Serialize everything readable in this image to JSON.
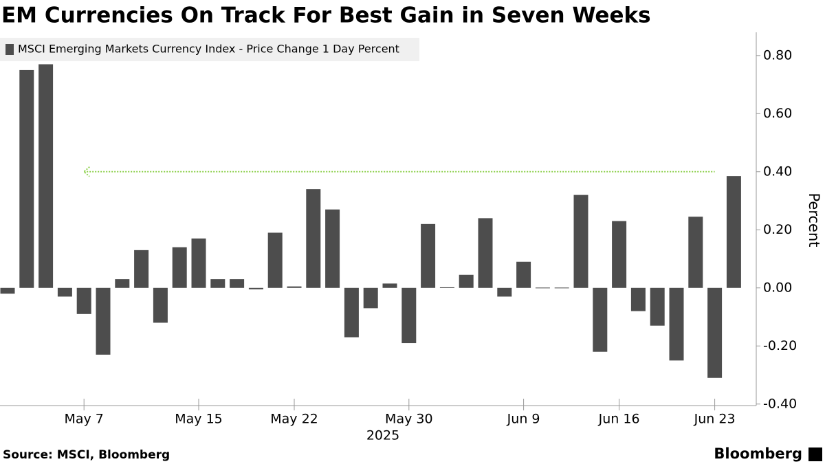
{
  "chart_data": {
    "type": "bar",
    "title": "EM Currencies On Track For Best Gain in Seven Weeks",
    "series": [
      {
        "name": "MSCI Emerging Markets Currency Index - Price Change 1 Day Percent",
        "color": "#4d4d4d",
        "values": [
          -0.02,
          0.75,
          0.77,
          -0.03,
          -0.09,
          -0.23,
          0.03,
          0.13,
          -0.12,
          0.14,
          0.17,
          0.03,
          0.03,
          -0.005,
          0.19,
          0.005,
          0.34,
          0.27,
          -0.17,
          -0.07,
          0.015,
          -0.19,
          0.22,
          0.002,
          0.045,
          0.24,
          -0.03,
          0.09,
          0.001,
          0.001,
          0.32,
          -0.22,
          0.23,
          -0.08,
          -0.13,
          -0.25,
          0.245,
          -0.31,
          0.385
        ]
      }
    ],
    "categories": [
      null,
      null,
      null,
      null,
      "May 7",
      null,
      null,
      null,
      null,
      null,
      "May 15",
      null,
      null,
      null,
      null,
      "May 22",
      null,
      null,
      null,
      null,
      null,
      "May 30",
      null,
      null,
      null,
      null,
      null,
      "Jun 9",
      null,
      null,
      null,
      null,
      "Jun 16",
      null,
      null,
      null,
      null,
      "Jun 23",
      null
    ],
    "x_label": "2025",
    "y_label": "Percent",
    "ylim": [
      -0.41,
      0.88
    ],
    "yticks": [
      {
        "value": -0.4,
        "label": "-0.40"
      },
      {
        "value": -0.2,
        "label": "-0.20"
      },
      {
        "value": 0,
        "label": "0.00"
      },
      {
        "value": 0.2,
        "label": "0.20"
      },
      {
        "value": 0.4,
        "label": "0.40"
      },
      {
        "value": 0.6,
        "label": "0.60"
      },
      {
        "value": 0.8,
        "label": "0.80"
      }
    ],
    "reference_line": {
      "value": 0.4,
      "color": "#8fd14f"
    },
    "source": "Source: MSCI, Bloomberg",
    "brand": "Bloomberg"
  }
}
